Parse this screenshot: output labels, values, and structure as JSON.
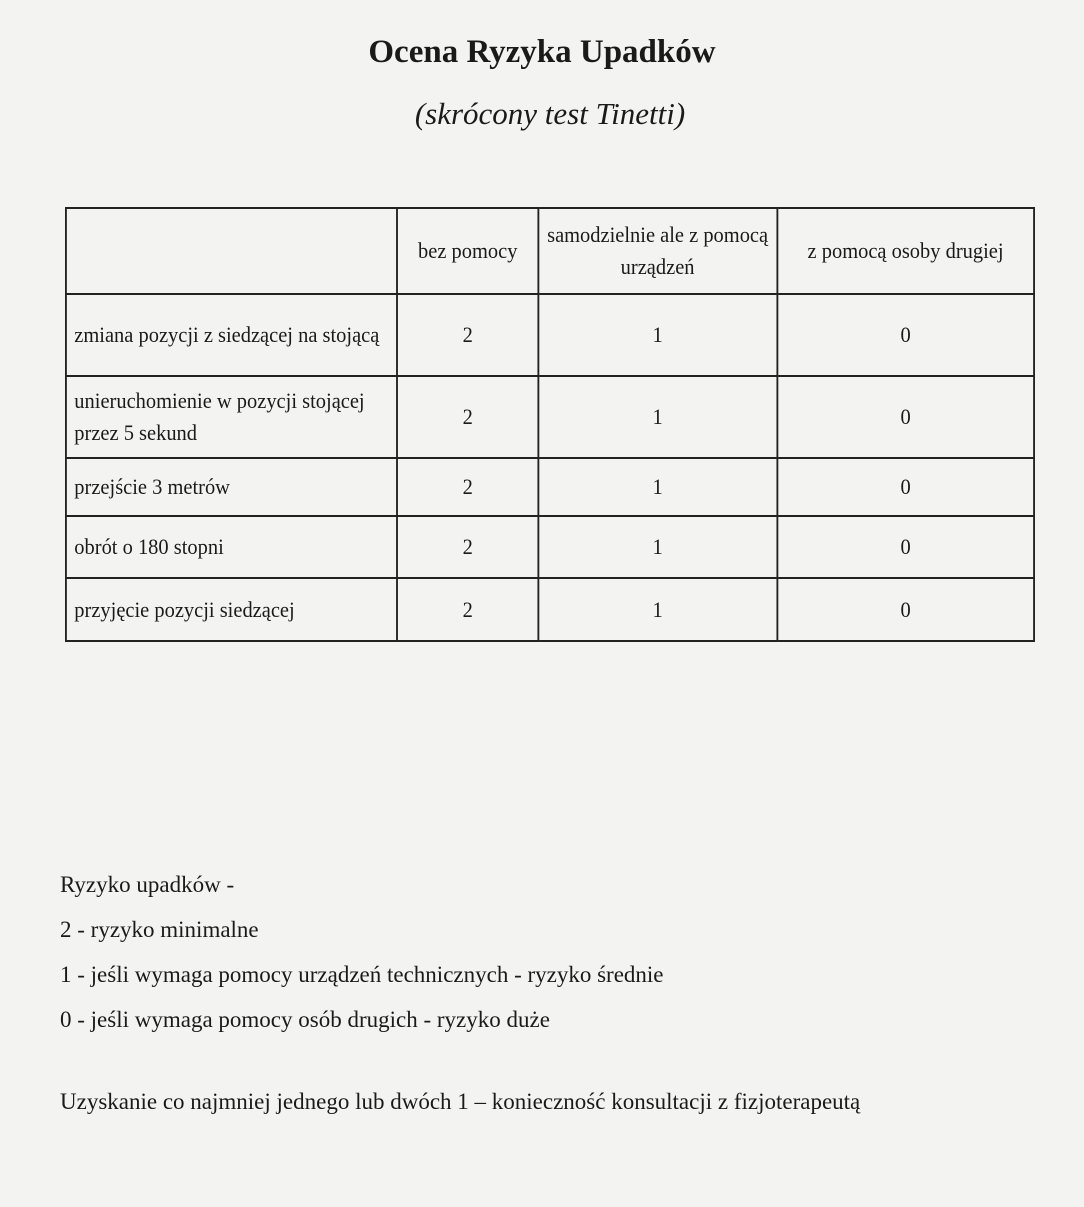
{
  "title": "Ocena Ryzyka Upadków",
  "subtitle": "(skrócony test Tinetti)",
  "table": {
    "headers": [
      "",
      "bez pomocy",
      "samodzielnie ale z pomocą urządzeń",
      "z pomocą osoby drugiej"
    ],
    "rows": [
      {
        "label": "zmiana pozycji z siedzącej na stojącą",
        "bez": "2",
        "urz": "1",
        "osoba": "0"
      },
      {
        "label": "unieruchomienie w pozycji stojącej przez 5 sekund",
        "bez": "2",
        "urz": "1",
        "osoba": "0"
      },
      {
        "label": "przejście 3 metrów",
        "bez": "2",
        "urz": "1",
        "osoba": "0"
      },
      {
        "label": "obrót o 180 stopni",
        "bez": "2",
        "urz": "1",
        "osoba": "0"
      },
      {
        "label": "przyjęcie pozycji siedzącej",
        "bez": "2",
        "urz": "1",
        "osoba": "0"
      }
    ]
  },
  "legend": {
    "heading": "Ryzyko upadków -",
    "items": [
      "2 - ryzyko minimalne",
      "1 - jeśli wymaga pomocy urządzeń technicznych - ryzyko średnie",
      "0 - jeśli wymaga pomocy osób drugich - ryzyko duże"
    ]
  },
  "note": "Uzyskanie co najmniej jednego  lub dwóch 1 – konieczność konsultacji z fizjoterapeutą"
}
